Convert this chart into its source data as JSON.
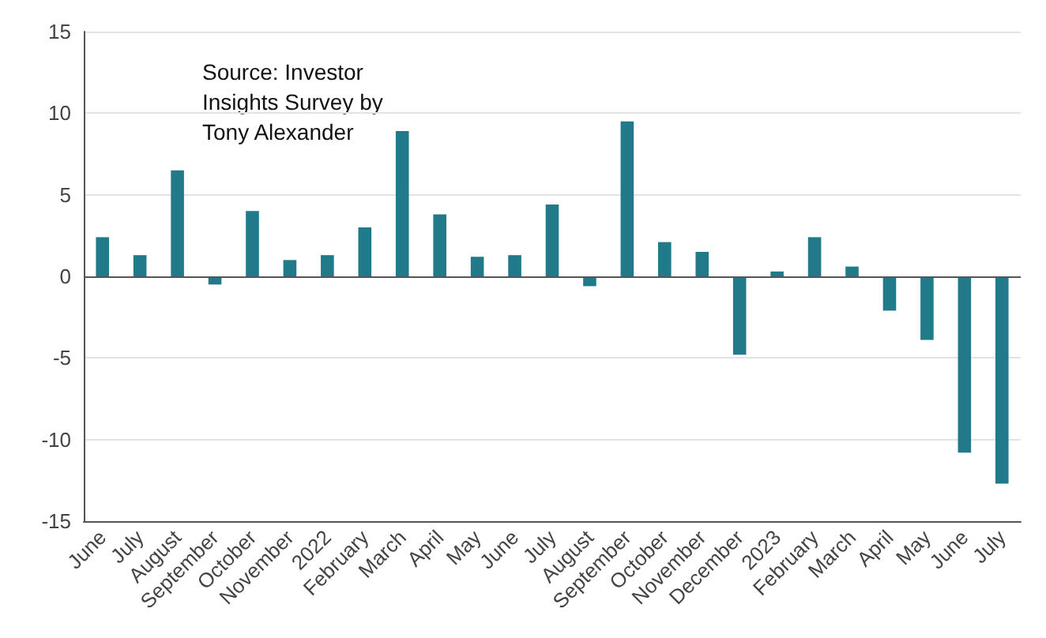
{
  "chart_data": {
    "type": "bar",
    "categories": [
      "June",
      "July",
      "August",
      "September",
      "October",
      "November",
      "2022",
      "February",
      "March",
      "April",
      "May",
      "June",
      "July",
      "August",
      "September",
      "October",
      "November",
      "December",
      "2023",
      "February",
      "March",
      "April",
      "May",
      "June",
      "July"
    ],
    "values": [
      2.4,
      1.3,
      6.5,
      -0.5,
      4.0,
      1.0,
      1.3,
      3.0,
      8.9,
      3.8,
      1.2,
      1.3,
      4.4,
      -0.6,
      9.5,
      2.1,
      1.5,
      -4.8,
      0.3,
      2.4,
      0.6,
      -2.1,
      -3.9,
      -10.8,
      -12.7
    ],
    "color": "#217a8a",
    "ylim": [
      -15,
      15
    ],
    "yticks": [
      -15,
      -10,
      -5,
      0,
      5,
      10,
      15
    ],
    "grid": "y",
    "annotations": [
      "Source: Investor\nInsights Survey by\nTony Alexander"
    ]
  }
}
